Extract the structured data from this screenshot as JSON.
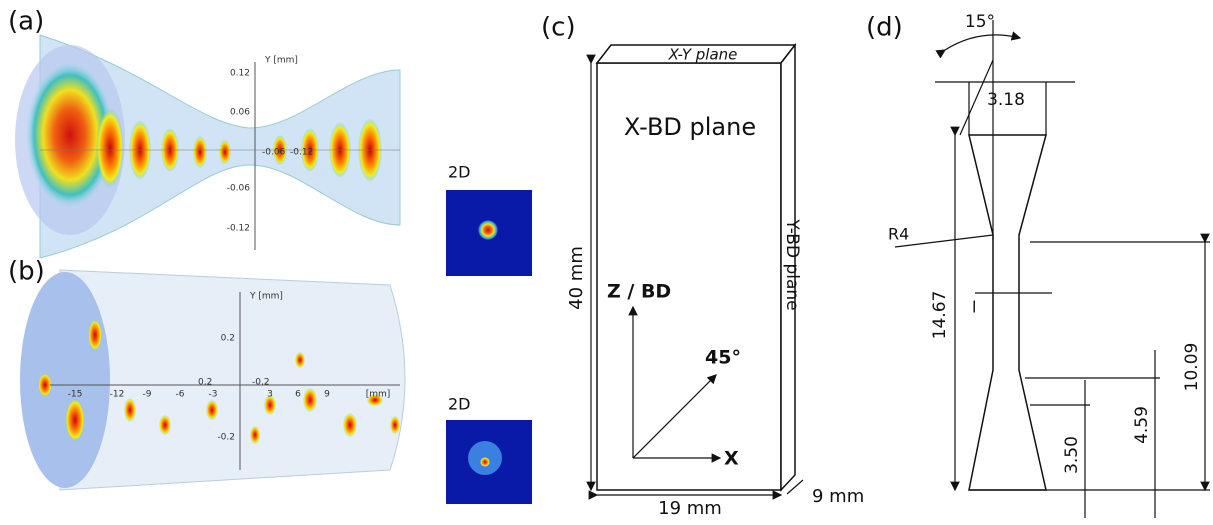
{
  "panel_a": {
    "label": "(a)",
    "axis_label": "Y [mm]",
    "ticks": [
      "0.12",
      "0.06",
      "-0.06",
      "-0.12"
    ],
    "inline_labels": [
      "-0.06",
      "-0.12"
    ],
    "inset_label": "2D"
  },
  "panel_b": {
    "label": "(b)",
    "axis_label": "Y [mm]",
    "y_ticks": [
      "0.2",
      "-0.2"
    ],
    "x_ticks": [
      "-15",
      "-12",
      "-9",
      "-6",
      "-3",
      "3",
      "6",
      "9",
      "[mm]"
    ],
    "inline_labels": [
      "0.2",
      "-0.2"
    ],
    "inset_label": "2D"
  },
  "panel_c": {
    "label": "(c)",
    "top_face": "X-Y plane",
    "front_face": "X-BD plane",
    "side_face": "Y-BD plane",
    "height": "40 mm",
    "width": "19 mm",
    "depth": "9 mm",
    "vertical_axis": "Z / BD",
    "diagonal": "45°",
    "horizontal_axis": "X"
  },
  "panel_d": {
    "label": "(d)",
    "angle": "15°",
    "top_width": "3.18",
    "radius": "R4",
    "gauge": "l",
    "total_length": "14.67",
    "length_a": "10.09",
    "length_b": "4.59",
    "length_c": "3.50"
  }
}
